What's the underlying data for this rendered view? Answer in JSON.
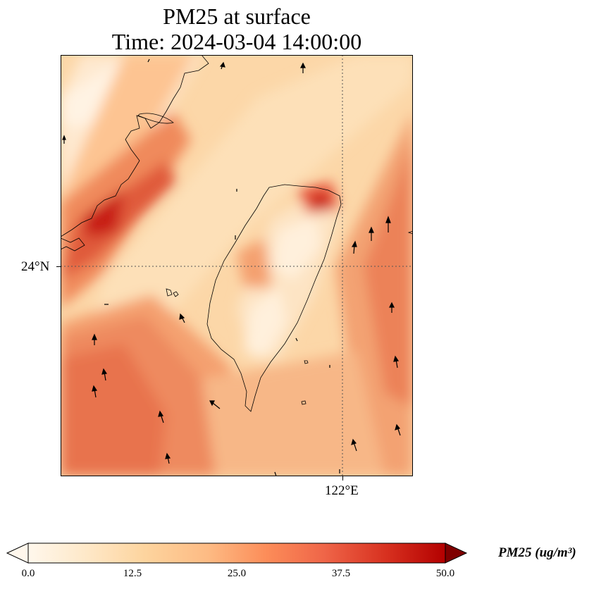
{
  "title_line1": "PM25 at surface",
  "title_line2": "Time: 2024-03-04 14:00:00",
  "map": {
    "lat_tick_label": "24°N",
    "lon_tick_label": "122°E"
  },
  "colorbar": {
    "label": "PM25 (ug/m³)",
    "min": 0.0,
    "max": 50.0,
    "ticks": [
      "0.0",
      "12.5",
      "25.0",
      "37.5",
      "50.0"
    ],
    "colormap": "OrRd",
    "extend": "both"
  }
}
